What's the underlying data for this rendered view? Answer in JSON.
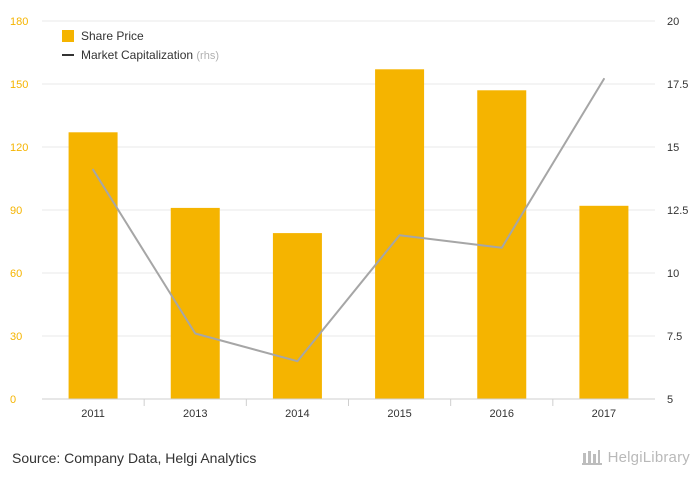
{
  "chart_data": {
    "type": "bar",
    "categories": [
      "2011",
      "2013",
      "2014",
      "2015",
      "2016",
      "2017"
    ],
    "series": [
      {
        "name": "Share Price",
        "type": "bar",
        "axis": "left",
        "values": [
          127,
          91,
          79,
          157,
          147,
          92
        ],
        "color": "#f5b400"
      },
      {
        "name": "Market Capitalization",
        "type": "line",
        "axis": "right",
        "values": [
          14.1,
          7.6,
          6.5,
          11.5,
          11.0,
          17.7
        ],
        "color": "#a6a6a6"
      }
    ],
    "left_axis": {
      "ticks": [
        0,
        30,
        60,
        90,
        120,
        150,
        180
      ],
      "ylim": [
        0,
        180
      ],
      "tick_labels": [
        "0",
        "30",
        "60",
        "90",
        "120",
        "150",
        "180"
      ]
    },
    "right_axis": {
      "ticks": [
        5,
        7.5,
        10,
        12.5,
        15,
        17.5,
        20
      ],
      "ylim": [
        5,
        20
      ],
      "tick_labels": [
        "5",
        "7.5",
        "10",
        "12.5",
        "15",
        "17.5",
        "20"
      ]
    },
    "legend": {
      "placement": "top-left",
      "items": [
        {
          "label": "Share Price",
          "suffix": ""
        },
        {
          "label": "Market Capitalization",
          "suffix": "(rhs)"
        }
      ]
    },
    "grid": true
  },
  "footer": {
    "source": "Source: Company Data, Helgi Analytics",
    "brand_name": "HelgiLibrary",
    "brand_icon": "library-icon"
  }
}
